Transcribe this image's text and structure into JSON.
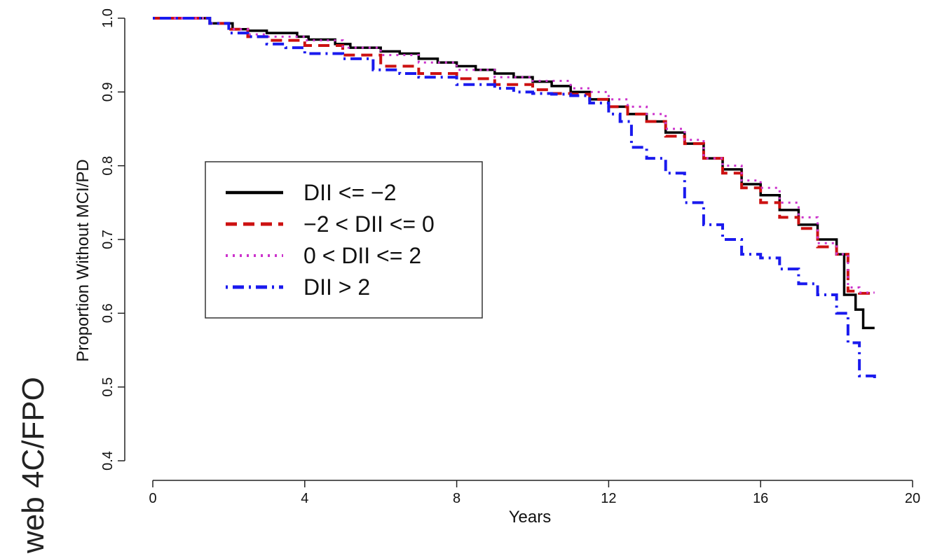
{
  "margin_label": "web 4C/FPO",
  "chart_data": {
    "type": "line",
    "title": "",
    "xlabel": "Years",
    "ylabel": "Proportion Without MCI/PD",
    "xlim": [
      0,
      20
    ],
    "ylim": [
      0.4,
      1.0
    ],
    "x_ticks": [
      0,
      4,
      8,
      12,
      16,
      20
    ],
    "y_ticks": [
      0.4,
      0.5,
      0.6,
      0.7,
      0.8,
      0.9,
      1.0
    ],
    "grid": false,
    "step": true,
    "legend": {
      "placement": "center-left"
    },
    "series": [
      {
        "name": "DII <= −2",
        "color": "#000000",
        "style": "solid",
        "x": [
          0,
          1.0,
          1.5,
          2.1,
          2.5,
          3.0,
          3.8,
          4.1,
          4.8,
          5.2,
          6.0,
          6.5,
          7.0,
          7.5,
          8.0,
          8.5,
          9.0,
          9.5,
          10.0,
          10.5,
          11.0,
          11.5,
          12.0,
          12.5,
          13.0,
          13.5,
          14.0,
          14.5,
          15.0,
          15.5,
          16.0,
          16.5,
          17.0,
          17.5,
          18.0,
          18.2,
          18.5,
          18.7,
          19.0
        ],
        "y": [
          1.0,
          1.0,
          0.993,
          0.985,
          0.983,
          0.98,
          0.975,
          0.971,
          0.965,
          0.96,
          0.955,
          0.952,
          0.945,
          0.94,
          0.935,
          0.93,
          0.925,
          0.92,
          0.914,
          0.908,
          0.9,
          0.89,
          0.88,
          0.87,
          0.86,
          0.845,
          0.83,
          0.81,
          0.795,
          0.775,
          0.76,
          0.74,
          0.72,
          0.7,
          0.68,
          0.625,
          0.605,
          0.58,
          0.58
        ]
      },
      {
        "name": "−2 < DII <= 0",
        "color": "#cc1111",
        "style": "dashed",
        "x": [
          0,
          1.0,
          1.5,
          2.0,
          2.5,
          3.0,
          4.0,
          5.0,
          6.0,
          7.0,
          8.0,
          9.0,
          10.0,
          10.5,
          11.0,
          11.5,
          12.0,
          12.5,
          13.0,
          13.5,
          14.0,
          14.5,
          15.0,
          15.5,
          16.0,
          16.5,
          17.0,
          17.5,
          18.0,
          18.3,
          18.6,
          19.0
        ],
        "y": [
          1.0,
          1.0,
          0.993,
          0.985,
          0.975,
          0.97,
          0.963,
          0.95,
          0.935,
          0.925,
          0.918,
          0.91,
          0.903,
          0.898,
          0.897,
          0.89,
          0.88,
          0.87,
          0.86,
          0.84,
          0.83,
          0.81,
          0.79,
          0.77,
          0.75,
          0.73,
          0.715,
          0.69,
          0.68,
          0.63,
          0.627,
          0.627
        ]
      },
      {
        "name": "0 < DII <= 2",
        "color": "#cc33cc",
        "style": "dotted",
        "x": [
          0,
          1.0,
          1.5,
          2.0,
          2.5,
          3.0,
          4.0,
          5.0,
          6.0,
          7.0,
          8.0,
          9.0,
          10.0,
          11.0,
          11.5,
          12.0,
          12.5,
          13.0,
          13.5,
          14.0,
          14.5,
          15.0,
          15.5,
          16.0,
          16.5,
          17.0,
          17.5,
          18.0,
          18.3,
          18.6,
          19.0
        ],
        "y": [
          1.0,
          1.0,
          0.993,
          0.985,
          0.978,
          0.975,
          0.97,
          0.96,
          0.95,
          0.94,
          0.93,
          0.92,
          0.915,
          0.905,
          0.9,
          0.89,
          0.88,
          0.87,
          0.85,
          0.835,
          0.81,
          0.8,
          0.78,
          0.77,
          0.75,
          0.73,
          0.695,
          0.68,
          0.635,
          0.628,
          0.628
        ]
      },
      {
        "name": "DII > 2",
        "color": "#1a1aee",
        "style": "dotdash",
        "x": [
          0,
          1.0,
          1.5,
          2.0,
          2.5,
          3.0,
          3.5,
          4.0,
          5.0,
          5.8,
          6.5,
          7.0,
          8.0,
          9.0,
          9.5,
          10.0,
          10.5,
          11.0,
          11.5,
          12.0,
          12.3,
          12.6,
          13.0,
          13.5,
          14.0,
          14.5,
          15.0,
          15.5,
          16.0,
          16.5,
          17.0,
          17.5,
          18.0,
          18.3,
          18.6,
          19.0
        ],
        "y": [
          1.0,
          1.0,
          0.993,
          0.98,
          0.975,
          0.965,
          0.96,
          0.952,
          0.945,
          0.93,
          0.925,
          0.92,
          0.91,
          0.905,
          0.9,
          0.898,
          0.897,
          0.895,
          0.885,
          0.87,
          0.86,
          0.825,
          0.81,
          0.79,
          0.75,
          0.72,
          0.7,
          0.68,
          0.675,
          0.66,
          0.64,
          0.625,
          0.6,
          0.56,
          0.515,
          0.512
        ]
      }
    ]
  }
}
